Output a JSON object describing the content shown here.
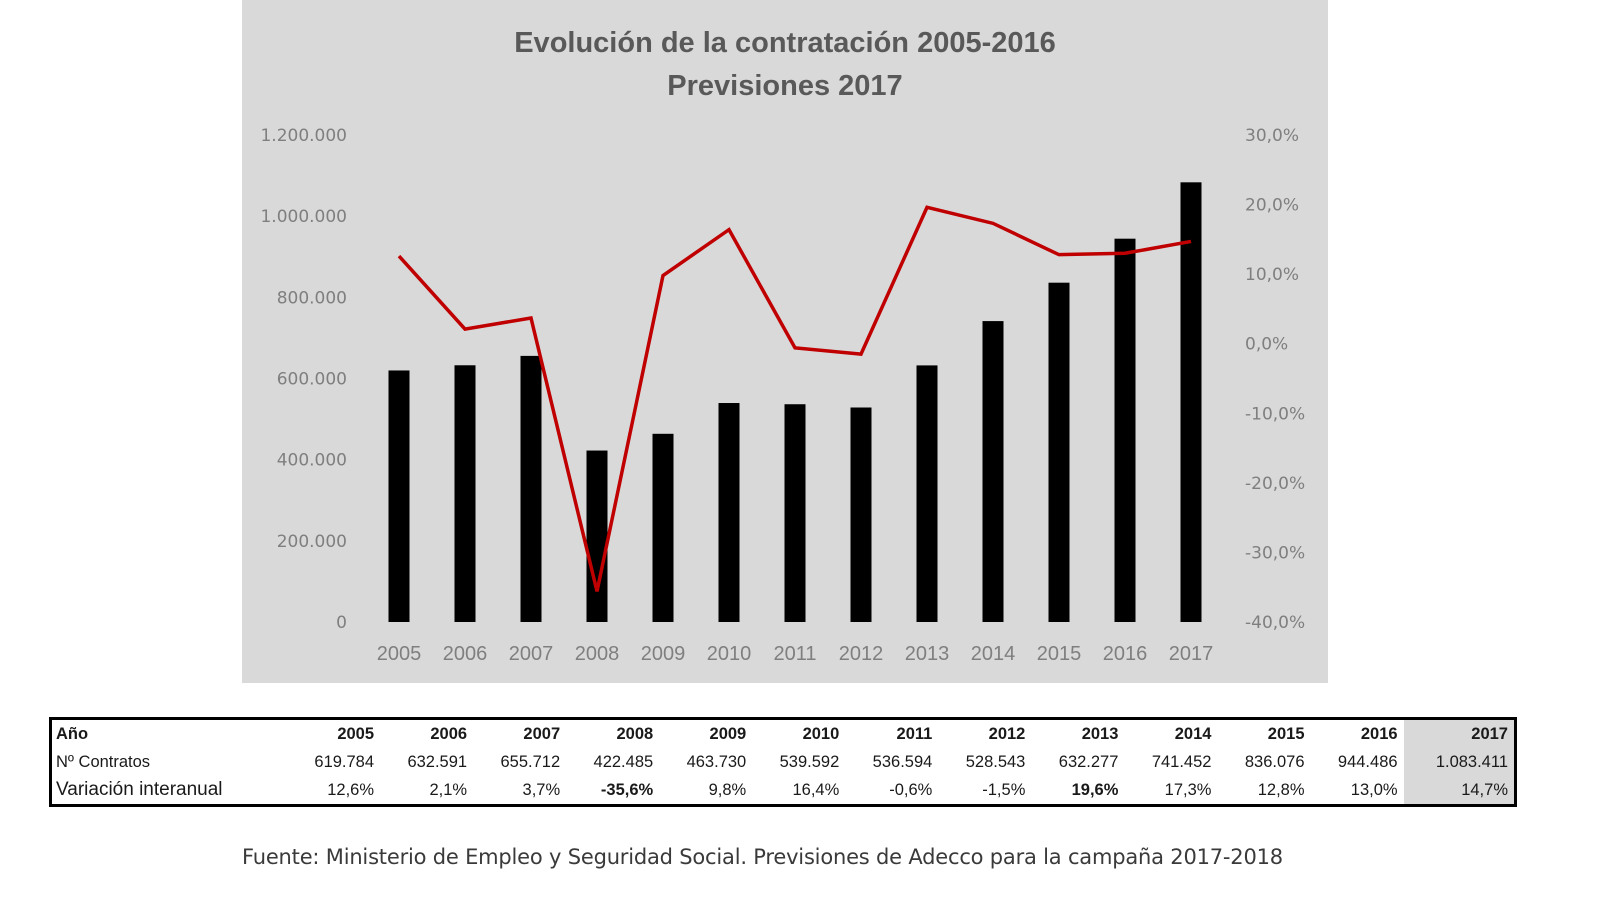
{
  "chart_data": {
    "type": "bar+line",
    "title": "Evolución de la contratación 2005-2016",
    "subtitle": "Previsiones 2017",
    "categories": [
      "2005",
      "2006",
      "2007",
      "2008",
      "2009",
      "2010",
      "2011",
      "2012",
      "2013",
      "2014",
      "2015",
      "2016",
      "2017"
    ],
    "series": [
      {
        "name": "Nº Contratos",
        "type": "bar",
        "axis": "left",
        "color": "#000000",
        "values": [
          619784,
          632591,
          655712,
          422485,
          463730,
          539592,
          536594,
          528543,
          632277,
          741452,
          836076,
          944486,
          1083411
        ]
      },
      {
        "name": "Variación interanual",
        "type": "line",
        "axis": "right",
        "color": "#c00000",
        "unit": "%",
        "values": [
          12.6,
          2.1,
          3.7,
          -35.6,
          9.8,
          16.4,
          -0.6,
          -1.5,
          19.6,
          17.3,
          12.8,
          13.0,
          14.7
        ]
      }
    ],
    "y_left": {
      "range": [
        0,
        1200000
      ],
      "ticks": [
        0,
        200000,
        400000,
        600000,
        800000,
        1000000,
        1200000
      ],
      "tick_labels": [
        "0",
        "200.000",
        "400.000",
        "600.000",
        "800.000",
        "1.000.000",
        "1.200.000"
      ]
    },
    "y_right": {
      "range": [
        -40,
        30
      ],
      "ticks": [
        -40,
        -30,
        -20,
        -10,
        0,
        10,
        20,
        30
      ],
      "tick_labels": [
        "-40,0%",
        "-30,0%",
        "-20,0%",
        "-10,0%",
        "0,0%",
        "10,0%",
        "20,0%",
        "30,0%"
      ]
    },
    "xlabel": "",
    "ylabel": "",
    "grid": false,
    "legend": "none",
    "background": "#d9d9d9"
  },
  "table": {
    "rows": [
      {
        "label": "Año",
        "values": [
          "2005",
          "2006",
          "2007",
          "2008",
          "2009",
          "2010",
          "2011",
          "2012",
          "2013",
          "2014",
          "2015",
          "2016",
          "2017"
        ]
      },
      {
        "label": "Nº Contratos",
        "values": [
          "619.784",
          "632.591",
          "655.712",
          "422.485",
          "463.730",
          "539.592",
          "536.594",
          "528.543",
          "632.277",
          "741.452",
          "836.076",
          "944.486",
          "1.083.411"
        ]
      },
      {
        "label": "Variación interanual",
        "values": [
          "12,6%",
          "2,1%",
          "3,7%",
          "-35,6%",
          "9,8%",
          "16,4%",
          "-0,6%",
          "-1,5%",
          "19,6%",
          "17,3%",
          "12,8%",
          "13,0%",
          "14,7%"
        ],
        "bold_indices": [
          3,
          8
        ]
      }
    ],
    "forecast_column_index": 12
  },
  "source": "Fuente: Ministerio de Empleo y Seguridad Social. Previsiones de Adecco para la campaña 2017-2018"
}
